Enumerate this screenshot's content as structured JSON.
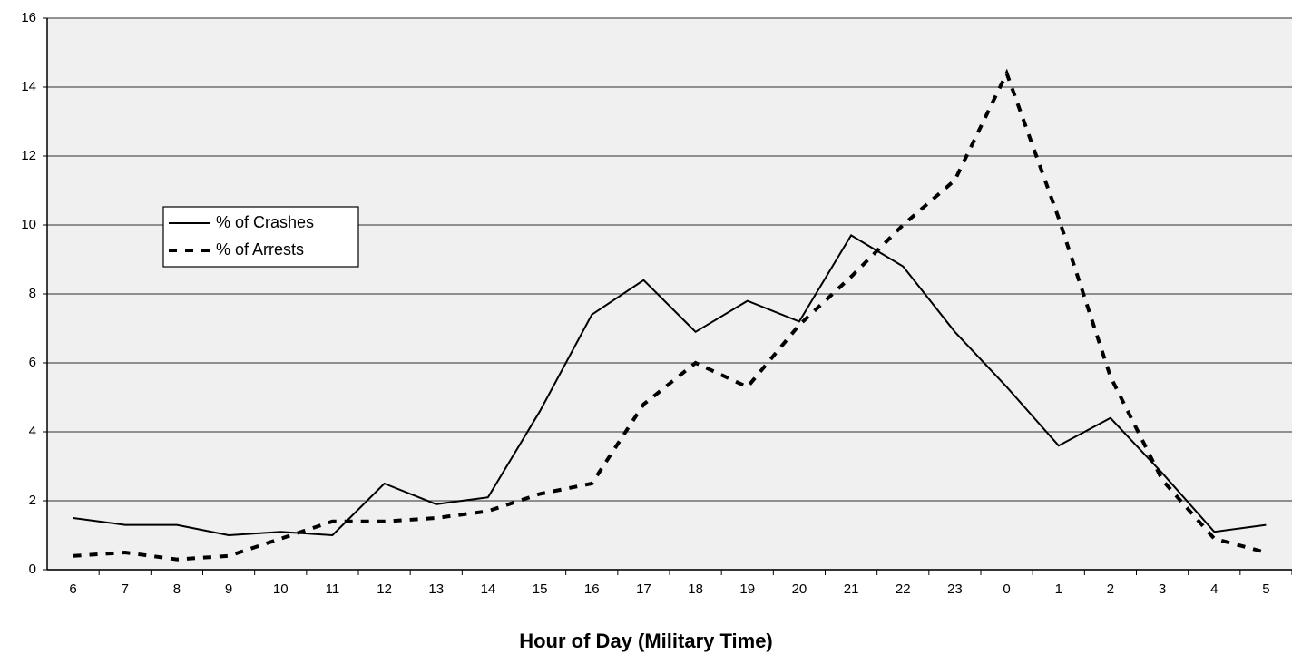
{
  "chart_data": {
    "type": "line",
    "x_label": "Hour of Day (Military Time)",
    "categories": [
      "6",
      "7",
      "8",
      "9",
      "10",
      "11",
      "12",
      "13",
      "14",
      "15",
      "16",
      "17",
      "18",
      "19",
      "20",
      "21",
      "22",
      "23",
      "0",
      "1",
      "2",
      "3",
      "4",
      "5"
    ],
    "series": [
      {
        "name": "% of Crashes",
        "color": "#000000",
        "style": "solid",
        "values": [
          1.5,
          1.3,
          1.3,
          1.0,
          1.1,
          1.0,
          2.5,
          1.9,
          2.1,
          4.6,
          7.4,
          8.4,
          6.9,
          7.8,
          7.2,
          9.7,
          8.8,
          6.9,
          5.3,
          3.6,
          4.4,
          2.8,
          1.1,
          1.3
        ]
      },
      {
        "name": "% of Arrests",
        "color": "#000000",
        "style": "dashed",
        "values": [
          0.4,
          0.5,
          0.3,
          0.4,
          0.9,
          1.4,
          1.4,
          1.5,
          1.7,
          2.2,
          2.5,
          4.8,
          6.0,
          5.3,
          7.1,
          8.5,
          10.0,
          11.3,
          14.4,
          10.2,
          5.6,
          2.6,
          0.9,
          0.5
        ]
      }
    ],
    "ylim": [
      0,
      16
    ],
    "yticks": [
      0,
      2,
      4,
      6,
      8,
      10,
      12,
      14,
      16
    ],
    "grid": true,
    "legend": "center-left"
  }
}
